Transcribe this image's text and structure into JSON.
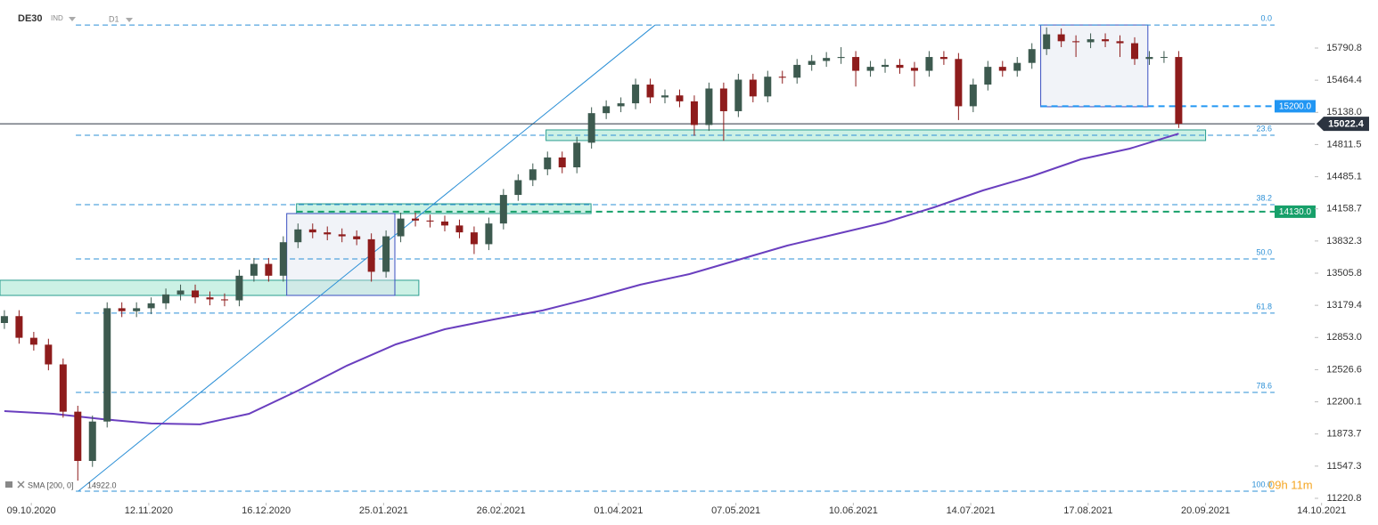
{
  "chart_data": {
    "type": "candlestick",
    "symbol": "DE30",
    "instrument_type": "IND",
    "interval": "D1",
    "xlim": [
      -0.9,
      267.8
    ],
    "ylim": [
      11175.6,
      16278.5
    ],
    "xticks": [
      {
        "value": 5.5,
        "label": "09.10.2020"
      },
      {
        "value": 29.5,
        "label": "12.11.2020"
      },
      {
        "value": 53.5,
        "label": "16.12.2020"
      },
      {
        "value": 77.5,
        "label": "25.01.2021"
      },
      {
        "value": 101.5,
        "label": "26.02.2021"
      },
      {
        "value": 125.5,
        "label": "01.04.2021"
      },
      {
        "value": 149.5,
        "label": "07.05.2021"
      },
      {
        "value": 173.5,
        "label": "10.06.2021"
      },
      {
        "value": 197.5,
        "label": "14.07.2021"
      },
      {
        "value": 221.5,
        "label": "17.08.2021"
      },
      {
        "value": 245.5,
        "label": "20.09.2021"
      },
      {
        "value": 269.2,
        "label": "14.10.2021"
      }
    ],
    "yticks": [
      15790.8,
      15464.4,
      {
        "value": 15138.0,
        "label": "15138.0"
      },
      14811.5,
      14485.1,
      14158.7,
      13832.3,
      13505.8,
      13179.4,
      {
        "value": 12853.0,
        "label": "12853.0"
      },
      12526.6,
      12200.1,
      11873.7,
      11547.3,
      11220.8
    ],
    "up_color": "#3d5a4f",
    "down_color": "#8e1c1c",
    "x": [
      0,
      3,
      6,
      9,
      12,
      15,
      18,
      21,
      24,
      27,
      30,
      33,
      36,
      39,
      42,
      45,
      48,
      51,
      54,
      57,
      60,
      63,
      66,
      69,
      72,
      75,
      78,
      81,
      84,
      87,
      90,
      93,
      96,
      99,
      102,
      105,
      108,
      111,
      114,
      117,
      120,
      123,
      126,
      129,
      132,
      135,
      138,
      141,
      144,
      147,
      150,
      153,
      156,
      159,
      162,
      165,
      168,
      171,
      174,
      177,
      180,
      183,
      186,
      189,
      192,
      195,
      198,
      201,
      204,
      207,
      210,
      213,
      216,
      219,
      222,
      225,
      228,
      231,
      234,
      237,
      240
    ],
    "open": [
      13000,
      13070,
      12850,
      12780,
      12580,
      12100,
      11600,
      12000,
      13150,
      13120,
      13150,
      13200,
      13290,
      13330,
      13260,
      13240,
      13230,
      13480,
      13600,
      13480,
      13820,
      13950,
      13920,
      13900,
      13880,
      13850,
      13520,
      13880,
      14060,
      14040,
      14030,
      13990,
      13920,
      13800,
      14010,
      14300,
      14450,
      14560,
      14680,
      14580,
      14830,
      15130,
      15200,
      15230,
      15420,
      15290,
      15310,
      15250,
      15010,
      15380,
      15150,
      15470,
      15300,
      15500,
      15490,
      15620,
      15660,
      15690,
      15700,
      15560,
      15600,
      15620,
      15590,
      15560,
      15700,
      15680,
      15200,
      15420,
      15600,
      15560,
      15640,
      15780,
      15930,
      15860,
      15850,
      15880,
      15860,
      15840,
      15680,
      15700,
      15700
    ],
    "high": [
      13130,
      13130,
      12910,
      12840,
      12640,
      12160,
      12060,
      13210,
      13210,
      13210,
      13260,
      13350,
      13390,
      13390,
      13320,
      13300,
      13540,
      13660,
      13660,
      13880,
      14010,
      14010,
      13980,
      13960,
      13940,
      13910,
      13940,
      14120,
      14120,
      14100,
      14090,
      14050,
      13980,
      14070,
      14360,
      14510,
      14620,
      14740,
      14740,
      14890,
      15190,
      15260,
      15290,
      15480,
      15480,
      15370,
      15370,
      15310,
      15440,
      15440,
      15530,
      15530,
      15560,
      15560,
      15680,
      15720,
      15750,
      15800,
      15760,
      15660,
      15680,
      15680,
      15650,
      15760,
      15760,
      15740,
      15480,
      15660,
      15660,
      15700,
      15840,
      16000,
      15990,
      15920,
      15940,
      15940,
      15920,
      15900,
      15760,
      15760,
      15760
    ],
    "low": [
      12940,
      12790,
      12720,
      12520,
      12040,
      11400,
      11540,
      11940,
      13060,
      13060,
      13090,
      13140,
      13230,
      13200,
      13180,
      13170,
      13170,
      13420,
      13420,
      13420,
      13760,
      13860,
      13840,
      13820,
      13790,
      13420,
      13460,
      13820,
      13980,
      13970,
      13930,
      13860,
      13700,
      13740,
      13950,
      14240,
      14390,
      14500,
      14520,
      14520,
      14770,
      15070,
      15140,
      15170,
      15230,
      15230,
      15190,
      14900,
      14950,
      14850,
      15090,
      15240,
      15240,
      15430,
      15430,
      15560,
      15600,
      15630,
      15400,
      15500,
      15540,
      15530,
      15400,
      15500,
      15620,
      15060,
      15140,
      15360,
      15500,
      15500,
      15580,
      15720,
      15800,
      15700,
      15790,
      15800,
      15700,
      15620,
      15620,
      15640,
      14980
    ],
    "close": [
      13070,
      12850,
      12780,
      12580,
      12100,
      11600,
      12000,
      13150,
      13120,
      13150,
      13200,
      13290,
      13330,
      13260,
      13240,
      13230,
      13480,
      13600,
      13480,
      13820,
      13950,
      13920,
      13900,
      13880,
      13850,
      13520,
      13880,
      14060,
      14040,
      14030,
      13990,
      13920,
      13800,
      14010,
      14300,
      14450,
      14560,
      14680,
      14580,
      14830,
      15130,
      15200,
      15230,
      15420,
      15290,
      15310,
      15250,
      15010,
      15380,
      15150,
      15470,
      15300,
      15500,
      15490,
      15620,
      15660,
      15690,
      15700,
      15560,
      15600,
      15620,
      15590,
      15560,
      15700,
      15680,
      15200,
      15420,
      15600,
      15560,
      15640,
      15780,
      15930,
      15860,
      15850,
      15880,
      15860,
      15840,
      15680,
      15700,
      15700,
      15022
    ],
    "sma": {
      "name": "SMA [200, 0]",
      "color": "#6a3fbf",
      "value_label": "14922.0",
      "x": [
        0,
        10,
        20,
        30,
        40,
        50,
        60,
        70,
        80,
        90,
        100,
        110,
        120,
        130,
        140,
        150,
        160,
        170,
        180,
        190,
        200,
        210,
        220,
        230,
        240
      ],
      "values": [
        12106,
        12079,
        12025,
        11980,
        11971,
        12079,
        12314,
        12567,
        12783,
        12937,
        13036,
        13127,
        13253,
        13389,
        13497,
        13641,
        13786,
        13903,
        14021,
        14174,
        14346,
        14490,
        14662,
        14770,
        14922
      ]
    },
    "fibonacci": {
      "color": "#2b8fd6",
      "start_x": 14.6,
      "end_x": 259.6,
      "levels": [
        {
          "label": "0.0",
          "price": 16025
        },
        {
          "label": "23.6",
          "price": 14906
        },
        {
          "label": "38.2",
          "price": 14201
        },
        {
          "label": "50.0",
          "price": 13650
        },
        {
          "label": "61.8",
          "price": 13100
        },
        {
          "label": "78.6",
          "price": 12296
        },
        {
          "label": "100.0",
          "price": 11293
        }
      ]
    },
    "trendline": {
      "color": "#2b8fd6",
      "start_x": 15.1,
      "start_price": 11293,
      "end_x": 133,
      "end_price": 16025
    },
    "levels": [
      {
        "value": 15200,
        "label": "15200.0",
        "color": "#2196f3",
        "start_x": 211.8
      },
      {
        "value": 14130,
        "label": "14130.0",
        "color": "#17a06a",
        "start_x": 59.7
      }
    ],
    "current_price": 15022.4,
    "zones": [
      {
        "x": [
          -0.9,
          84.7
        ],
        "price": [
          13280,
          13434
        ]
      },
      {
        "x": [
          59.7,
          119.9
        ],
        "price": [
          14111,
          14210
        ]
      },
      {
        "x": [
          110.7,
          245.5
        ],
        "price": [
          14852,
          14960
        ]
      }
    ],
    "boxes": [
      {
        "x": [
          57.7,
          79.8
        ],
        "price": [
          13280,
          14111
        ]
      },
      {
        "x": [
          211.8,
          233.7
        ],
        "price": [
          15195,
          16025
        ]
      }
    ],
    "countdown": "09h 11m"
  }
}
